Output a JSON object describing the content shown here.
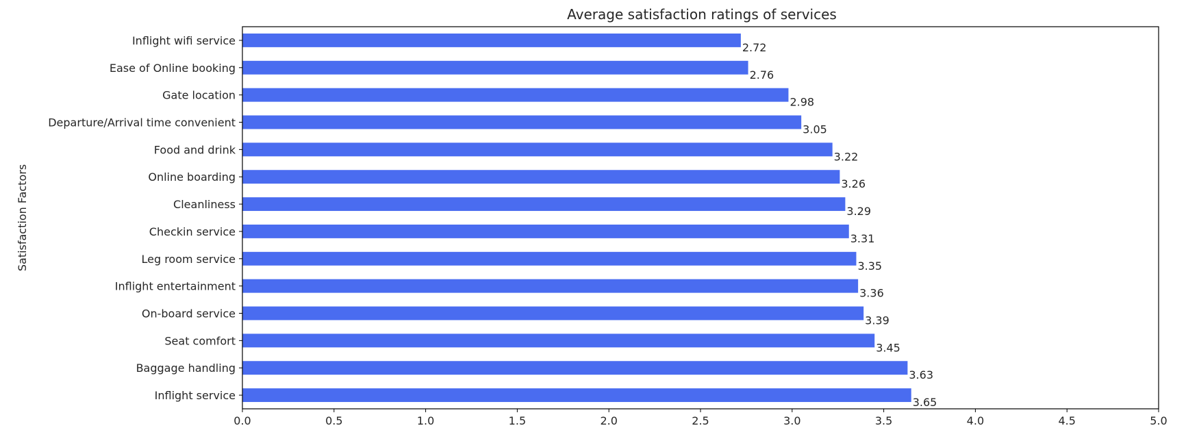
{
  "chart_data": {
    "type": "bar",
    "orientation": "horizontal",
    "title": "Average satisfaction ratings of services",
    "xlabel": "",
    "ylabel": "Satisfaction Factors",
    "xlim": [
      0,
      5
    ],
    "xticks": [
      "0.0",
      "0.5",
      "1.0",
      "1.5",
      "2.0",
      "2.5",
      "3.0",
      "3.5",
      "4.0",
      "4.5",
      "5.0"
    ],
    "grid": false,
    "bar_color": "#4a6cf0",
    "categories": [
      "Inflight wifi service",
      "Ease of Online booking",
      "Gate location",
      "Departure/Arrival time convenient",
      "Food and drink",
      "Online boarding",
      "Cleanliness",
      "Checkin service",
      "Leg room service",
      "Inflight entertainment",
      "On-board service",
      "Seat comfort",
      "Baggage handling",
      "Inflight service"
    ],
    "values": [
      2.72,
      2.76,
      2.98,
      3.05,
      3.22,
      3.26,
      3.29,
      3.31,
      3.35,
      3.36,
      3.39,
      3.45,
      3.63,
      3.65
    ],
    "value_labels": [
      "2.72",
      "2.76",
      "2.98",
      "3.05",
      "3.22",
      "3.26",
      "3.29",
      "3.31",
      "3.35",
      "3.36",
      "3.39",
      "3.45",
      "3.63",
      "3.65"
    ]
  }
}
